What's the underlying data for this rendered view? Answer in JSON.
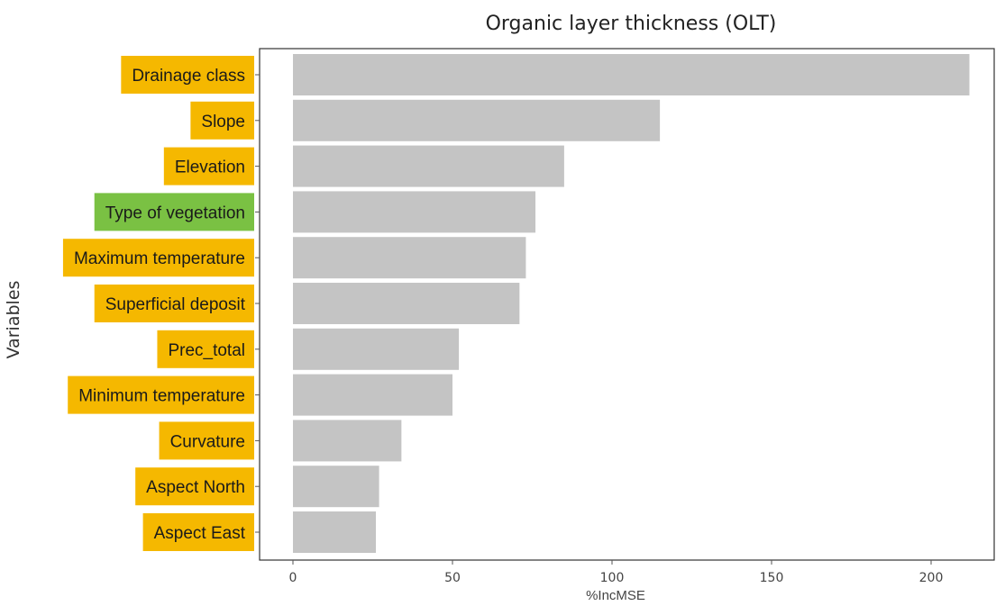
{
  "chart_data": {
    "type": "bar",
    "orientation": "horizontal",
    "title": "Organic layer thickness (OLT)",
    "xlabel": "%IncMSE",
    "ylabel": "Variables",
    "xlim": [
      0,
      220
    ],
    "xticks": [
      0,
      50,
      100,
      150,
      200
    ],
    "categories": [
      "Drainage class",
      "Slope",
      "Elevation",
      "Type of vegetation",
      "Maximum temperature",
      "Superficial deposit",
      "Prec_total",
      "Minimum temperature",
      "Curvature",
      "Aspect North",
      "Aspect East"
    ],
    "values": [
      212,
      115,
      85,
      76,
      73,
      71,
      52,
      50,
      34,
      27,
      26
    ],
    "label_colors": [
      "#f5b800",
      "#f5b800",
      "#f5b800",
      "#7ac143",
      "#f5b800",
      "#f5b800",
      "#f5b800",
      "#f5b800",
      "#f5b800",
      "#f5b800",
      "#f5b800"
    ],
    "bar_color": "#c4c4c4",
    "grid": false
  }
}
